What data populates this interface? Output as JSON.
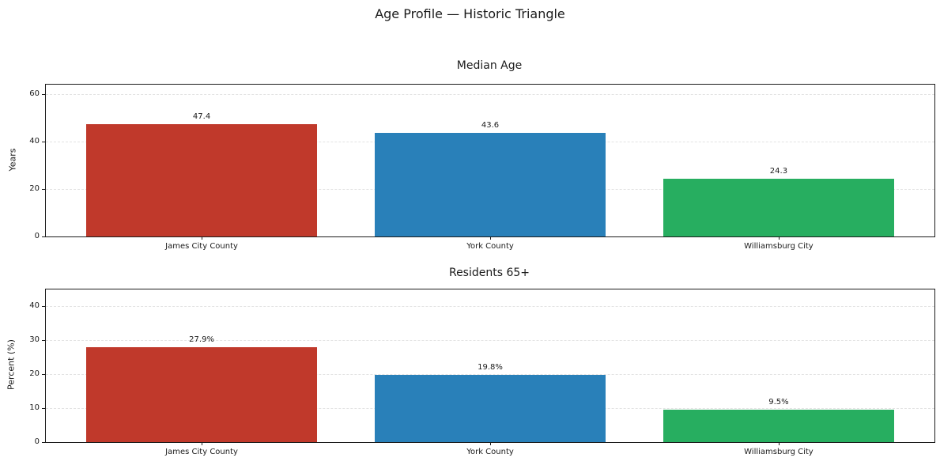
{
  "figure": {
    "title": "Age Profile — Historic Triangle"
  },
  "chart_data": [
    {
      "type": "bar",
      "title": "Median Age",
      "categories": [
        "James City County",
        "York County",
        "Williamsburg City"
      ],
      "values": [
        47.4,
        43.6,
        24.3
      ],
      "value_labels": [
        "47.4",
        "43.6",
        "24.3"
      ],
      "xlabel": "",
      "ylabel": "Years",
      "yticks": [
        0,
        20,
        40,
        60
      ],
      "ylim": [
        0,
        64
      ],
      "bar_colors": [
        "#c0392b",
        "#2980b9",
        "#27ae60"
      ],
      "grid": "horizontal-dashed",
      "legend": "none"
    },
    {
      "type": "bar",
      "title": "Residents 65+",
      "categories": [
        "James City County",
        "York County",
        "Williamsburg City"
      ],
      "values": [
        27.9,
        19.8,
        9.5
      ],
      "value_labels": [
        "27.9%",
        "19.8%",
        "9.5%"
      ],
      "xlabel": "",
      "ylabel": "Percent (%)",
      "yticks": [
        0,
        10,
        20,
        30,
        40
      ],
      "ylim": [
        0,
        45
      ],
      "bar_colors": [
        "#c0392b",
        "#2980b9",
        "#27ae60"
      ],
      "grid": "horizontal-dashed",
      "legend": "none"
    }
  ],
  "style": {
    "background_color": "#ffffff",
    "text_color": "#1a1a1a",
    "spine_color": "#1c1c1c",
    "grid_color": "#e3e3e3"
  }
}
